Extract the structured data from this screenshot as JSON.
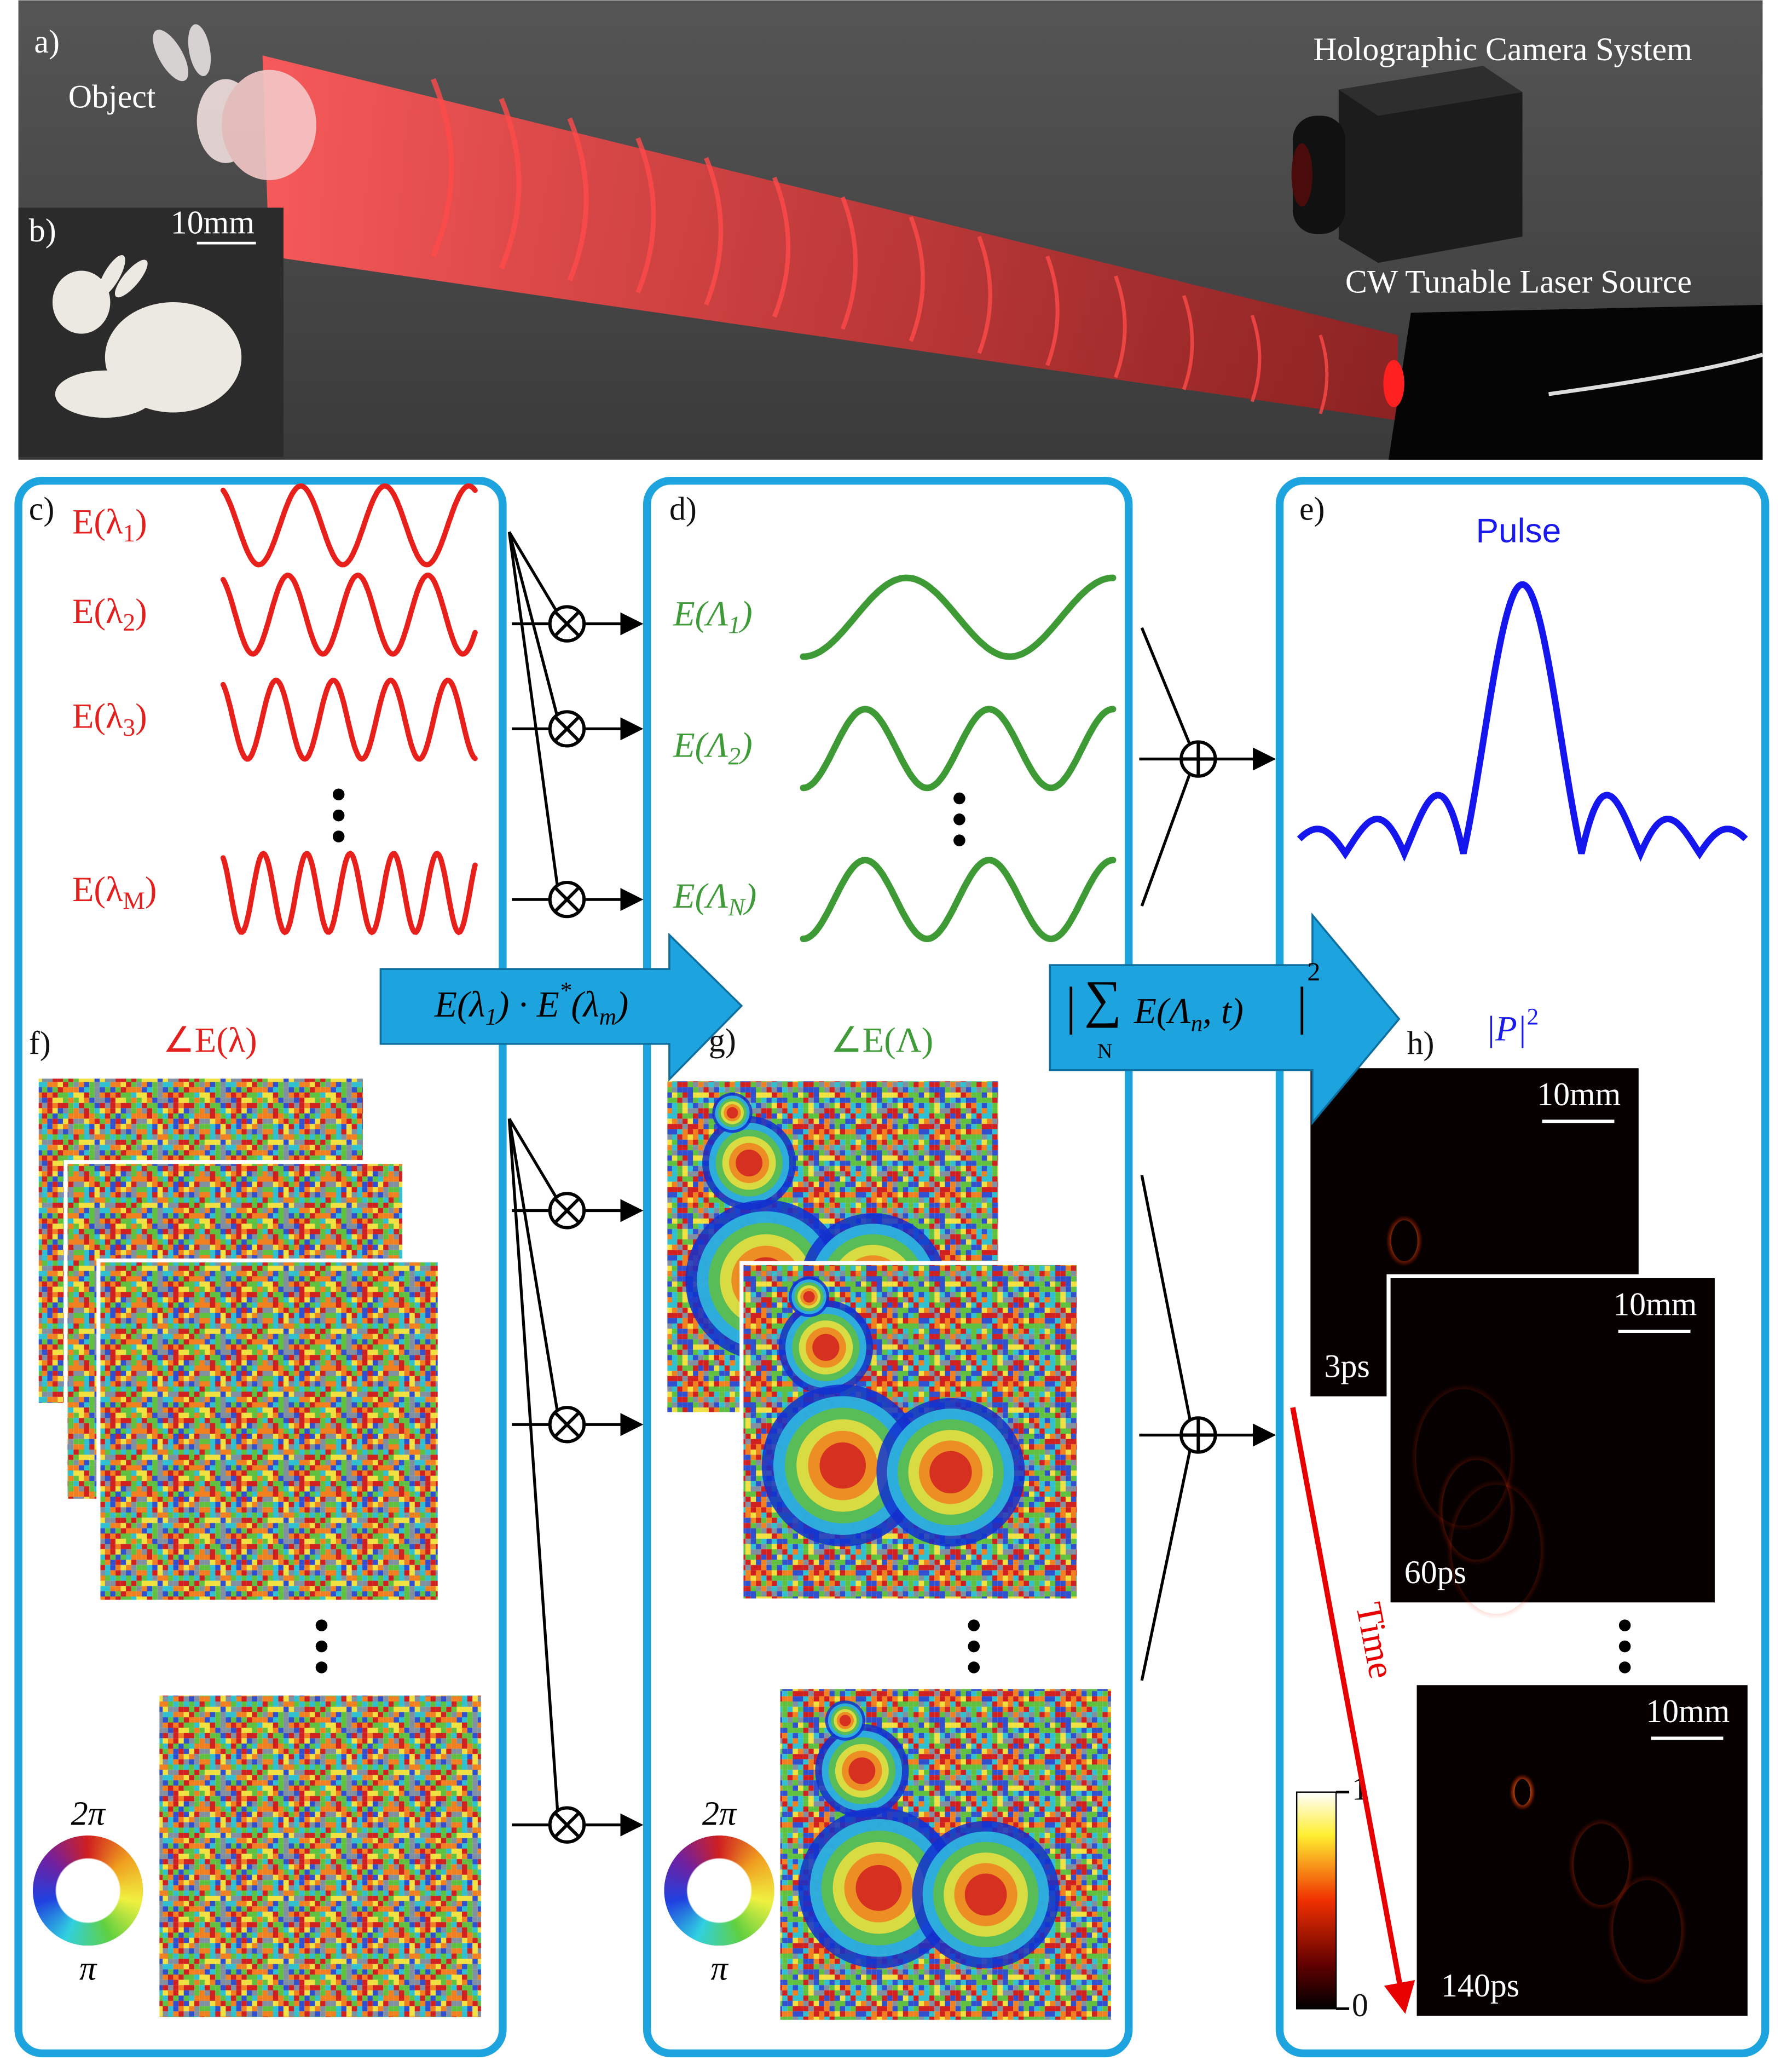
{
  "panel_a": {
    "label": "a)",
    "object": "Object",
    "camera": "Holographic Camera System",
    "laser": "CW Tunable Laser Source"
  },
  "panel_b": {
    "label": "b)",
    "scale": "10mm"
  },
  "panel_c": {
    "label": "c)",
    "fields": [
      {
        "main": "E(λ",
        "sub": "1",
        "tail": ")"
      },
      {
        "main": "E(λ",
        "sub": "2",
        "tail": ")"
      },
      {
        "main": "E(λ",
        "sub": "3",
        "tail": ")"
      },
      {
        "main": "E(λ",
        "sub": "M",
        "tail": ")"
      }
    ]
  },
  "panel_d": {
    "label": "d)",
    "fields": [
      {
        "main": "E(Λ",
        "sub": "1",
        "tail": ")"
      },
      {
        "main": "E(Λ",
        "sub": "2",
        "tail": ")"
      },
      {
        "main": "E(Λ",
        "sub": "N",
        "tail": ")"
      }
    ]
  },
  "panel_e": {
    "label": "e)",
    "title": "Pulse"
  },
  "arrow_1": {
    "parts": [
      "E(λ",
      "1",
      ") · E",
      "*",
      "(λ",
      "m",
      ")"
    ]
  },
  "arrow_2": {
    "parts": [
      "|",
      "∑",
      "N",
      "E(Λ",
      "n",
      ", t)",
      "|",
      "2"
    ]
  },
  "panel_f": {
    "label": "f)",
    "title": "∠E(λ)",
    "wheel_top": "2π",
    "wheel_bottom": "π"
  },
  "panel_g": {
    "label": "g)",
    "title": "∠E(Λ)",
    "wheel_top": "2π",
    "wheel_bottom": "π"
  },
  "panel_h": {
    "label": "h)",
    "title_main": "|P|",
    "title_sup": "2",
    "frames": [
      {
        "scale": "10mm",
        "time": "3ps"
      },
      {
        "scale": "10mm",
        "time": "60ps"
      },
      {
        "scale": "10mm",
        "time": "140ps"
      }
    ],
    "time_axis": "Time",
    "colorbar_top": "1",
    "colorbar_bottom": "0"
  }
}
